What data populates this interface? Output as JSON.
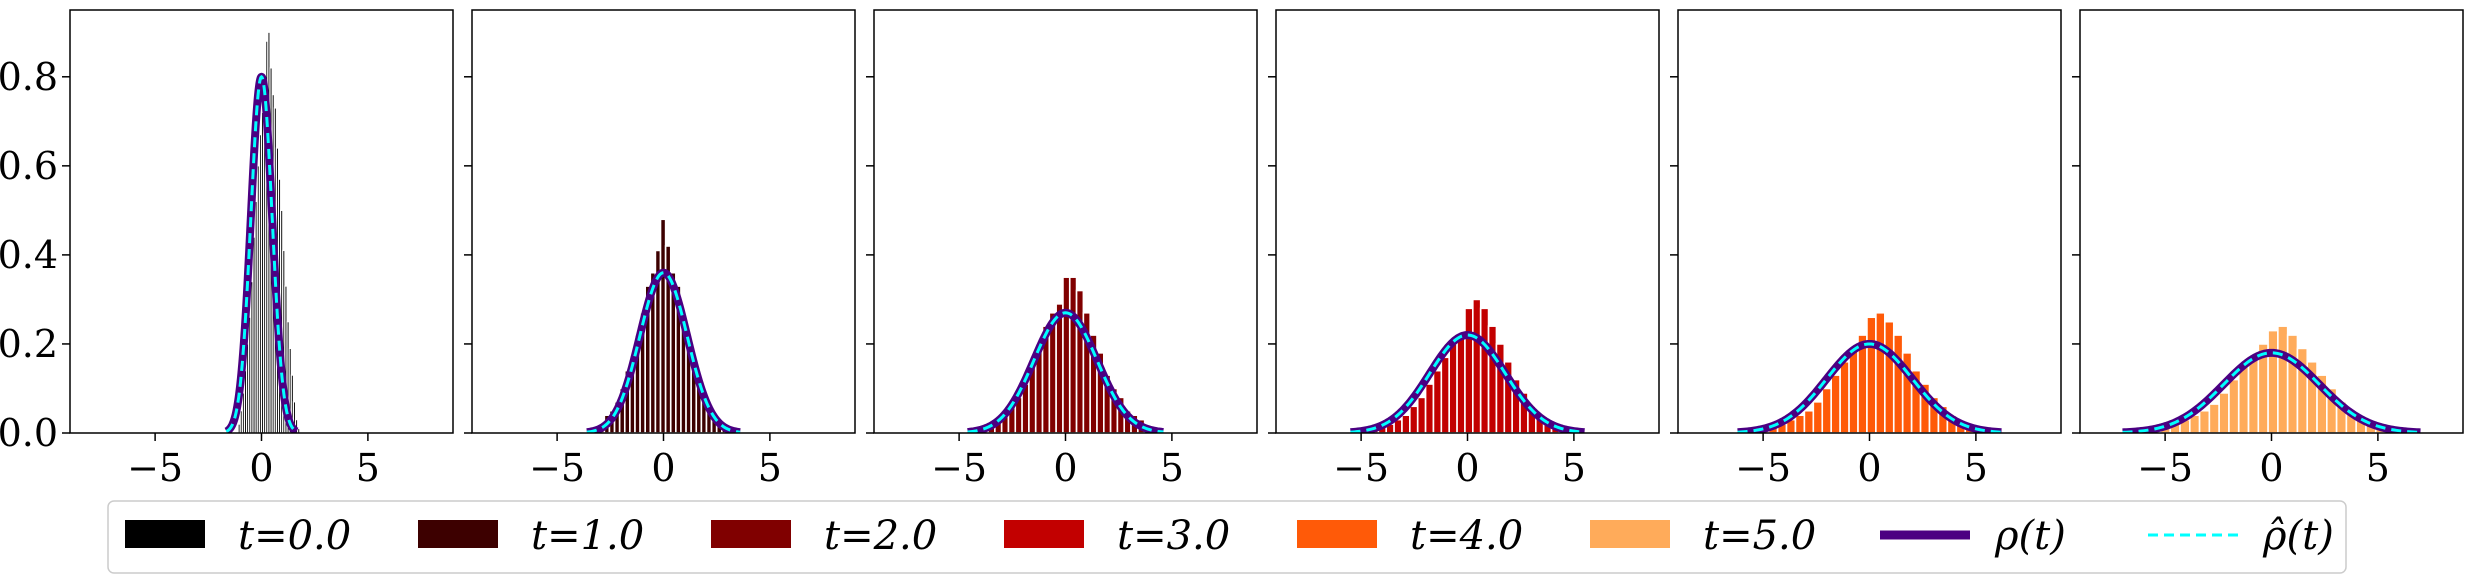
{
  "colors": {
    "t0": "#000000",
    "t1": "#3d0000",
    "t2": "#800000",
    "t3": "#c20000",
    "t4": "#ff5a08",
    "t5": "#ffab5a",
    "rho": "#4b0082",
    "rho_hat": "#00ffff"
  },
  "chart_data": {
    "type": "bar",
    "layout": "1x6 subplots, shared y-axis, legend below",
    "grid": false,
    "xlim": [
      -9,
      9
    ],
    "ylim": [
      0,
      0.95
    ],
    "xticks": [
      -5,
      0,
      5
    ],
    "yticks": [
      0.0,
      0.2,
      0.4,
      0.6,
      0.8
    ],
    "xtick_labels": [
      "−5",
      "0",
      "5"
    ],
    "ytick_labels": [
      "0.0",
      "0.2",
      "0.4",
      "0.6",
      "0.8"
    ],
    "legend": [
      {
        "key": "t0",
        "label": "t=0.0",
        "kind": "patch"
      },
      {
        "key": "t1",
        "label": "t=1.0",
        "kind": "patch"
      },
      {
        "key": "t2",
        "label": "t=2.0",
        "kind": "patch"
      },
      {
        "key": "t3",
        "label": "t=3.0",
        "kind": "patch"
      },
      {
        "key": "t4",
        "label": "t=4.0",
        "kind": "patch"
      },
      {
        "key": "t5",
        "label": "t=5.0",
        "kind": "patch"
      },
      {
        "key": "rho",
        "label": "ρ(t)",
        "kind": "solid-line"
      },
      {
        "key": "rho_hat",
        "label": "ρ̂(t)",
        "kind": "dashed-line"
      }
    ],
    "panels": [
      {
        "t": 0.0,
        "color_key": "t0",
        "bar_edge": "#ffffff",
        "curve": {
          "peak": 0.8,
          "sigma": 0.5,
          "x_range": [
            -1.65,
            1.65
          ]
        },
        "bins": {
          "x0": -1.1,
          "width": 0.1,
          "heights": [
            0.02,
            0.05,
            0.09,
            0.14,
            0.2,
            0.26,
            0.34,
            0.44,
            0.52,
            0.6,
            0.67,
            0.72,
            0.8,
            0.88,
            0.9,
            0.82,
            0.76,
            0.73,
            0.64,
            0.57,
            0.5,
            0.41,
            0.33,
            0.25,
            0.19,
            0.13,
            0.07,
            0.03,
            0.01
          ]
        }
      },
      {
        "t": 1.0,
        "color_key": "t1",
        "bar_edge": "#ffffff",
        "curve": {
          "peak": 0.36,
          "sigma": 1.11,
          "x_range": [
            -3.6,
            3.6
          ]
        },
        "bins": {
          "x0": -3.5,
          "width": 0.24,
          "heights": [
            0.002,
            0.01,
            0.02,
            0.04,
            0.05,
            0.07,
            0.1,
            0.14,
            0.17,
            0.22,
            0.27,
            0.33,
            0.36,
            0.41,
            0.48,
            0.42,
            0.36,
            0.33,
            0.27,
            0.21,
            0.16,
            0.13,
            0.09,
            0.06,
            0.04,
            0.03,
            0.015,
            0.008,
            0.002
          ]
        }
      },
      {
        "t": 2.0,
        "color_key": "t2",
        "bar_edge": "#ffffff",
        "curve": {
          "peak": 0.27,
          "sigma": 1.48,
          "x_range": [
            -4.6,
            4.6
          ]
        },
        "bins": {
          "x0": -4.6,
          "width": 0.32,
          "heights": [
            0.002,
            0.007,
            0.01,
            0.02,
            0.03,
            0.04,
            0.06,
            0.08,
            0.11,
            0.15,
            0.19,
            0.24,
            0.27,
            0.29,
            0.35,
            0.35,
            0.32,
            0.27,
            0.22,
            0.18,
            0.13,
            0.1,
            0.08,
            0.05,
            0.04,
            0.03,
            0.01,
            0.005,
            0.002
          ]
        }
      },
      {
        "t": 3.0,
        "color_key": "t3",
        "bar_edge": "#ffffff",
        "curve": {
          "peak": 0.22,
          "sigma": 1.78,
          "x_range": [
            -5.5,
            5.5
          ]
        },
        "bins": {
          "x0": -5.3,
          "width": 0.37,
          "heights": [
            0.002,
            0.006,
            0.01,
            0.015,
            0.02,
            0.03,
            0.04,
            0.06,
            0.08,
            0.11,
            0.14,
            0.17,
            0.2,
            0.22,
            0.28,
            0.3,
            0.28,
            0.24,
            0.2,
            0.16,
            0.12,
            0.09,
            0.06,
            0.04,
            0.03,
            0.02,
            0.01,
            0.005,
            0.002
          ]
        }
      },
      {
        "t": 4.0,
        "color_key": "t4",
        "bar_edge": "#ffffff",
        "curve": {
          "peak": 0.2,
          "sigma": 2.02,
          "x_range": [
            -6.2,
            6.2
          ]
        },
        "bins": {
          "x0": -6.0,
          "width": 0.42,
          "heights": [
            0.002,
            0.005,
            0.008,
            0.013,
            0.02,
            0.03,
            0.04,
            0.05,
            0.07,
            0.1,
            0.13,
            0.16,
            0.19,
            0.22,
            0.26,
            0.27,
            0.25,
            0.22,
            0.18,
            0.14,
            0.11,
            0.08,
            0.06,
            0.04,
            0.025,
            0.015,
            0.008,
            0.004,
            0.002
          ]
        }
      },
      {
        "t": 5.0,
        "color_key": "t5",
        "bar_edge": "#ffffff",
        "curve": {
          "peak": 0.18,
          "sigma": 2.25,
          "x_range": [
            -7.0,
            7.0
          ]
        },
        "bins": {
          "x0": -6.6,
          "width": 0.46,
          "heights": [
            0.002,
            0.005,
            0.008,
            0.012,
            0.02,
            0.03,
            0.04,
            0.05,
            0.065,
            0.09,
            0.12,
            0.15,
            0.17,
            0.2,
            0.23,
            0.24,
            0.22,
            0.19,
            0.16,
            0.13,
            0.1,
            0.07,
            0.05,
            0.035,
            0.02,
            0.012,
            0.006,
            0.003,
            0.002
          ]
        }
      }
    ]
  }
}
